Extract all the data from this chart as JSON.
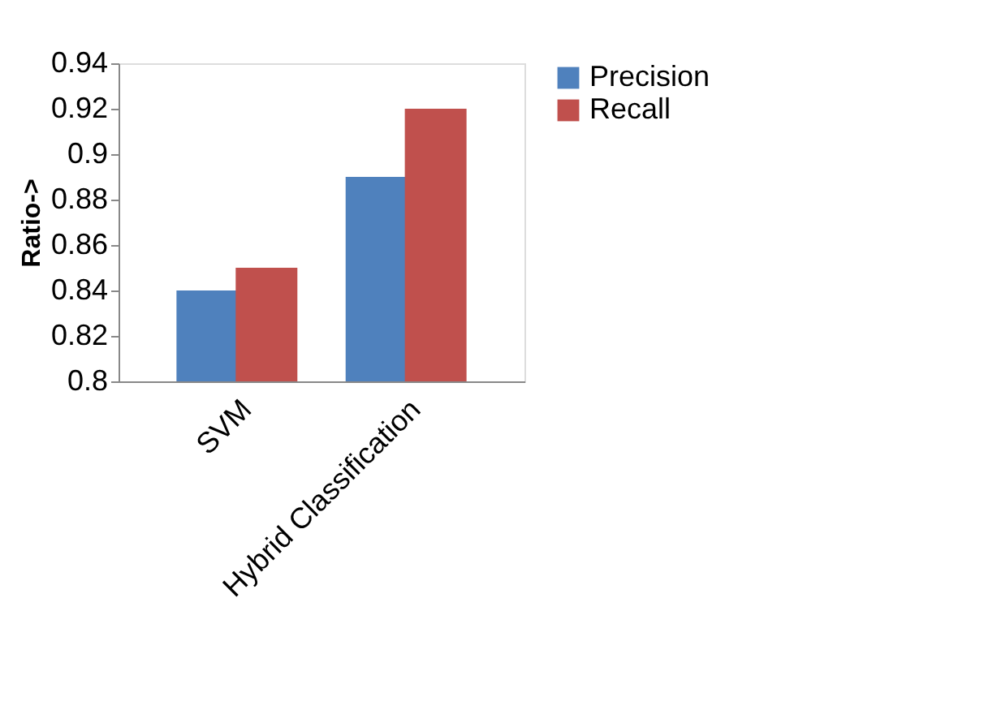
{
  "chart_data": {
    "type": "bar",
    "ylabel": "Ratio->",
    "categories": [
      "SVM",
      "Hybrid Classification"
    ],
    "series": [
      {
        "name": "Precision",
        "color": "#4f81bd",
        "values": [
          0.84,
          0.89
        ]
      },
      {
        "name": "Recall",
        "color": "#c0504d",
        "values": [
          0.85,
          0.92
        ]
      }
    ],
    "ylim": [
      0.8,
      0.94
    ],
    "yticks": [
      0.8,
      0.82,
      0.84,
      0.86,
      0.88,
      0.9,
      0.92,
      0.94
    ],
    "grid": false,
    "legend": "right"
  }
}
